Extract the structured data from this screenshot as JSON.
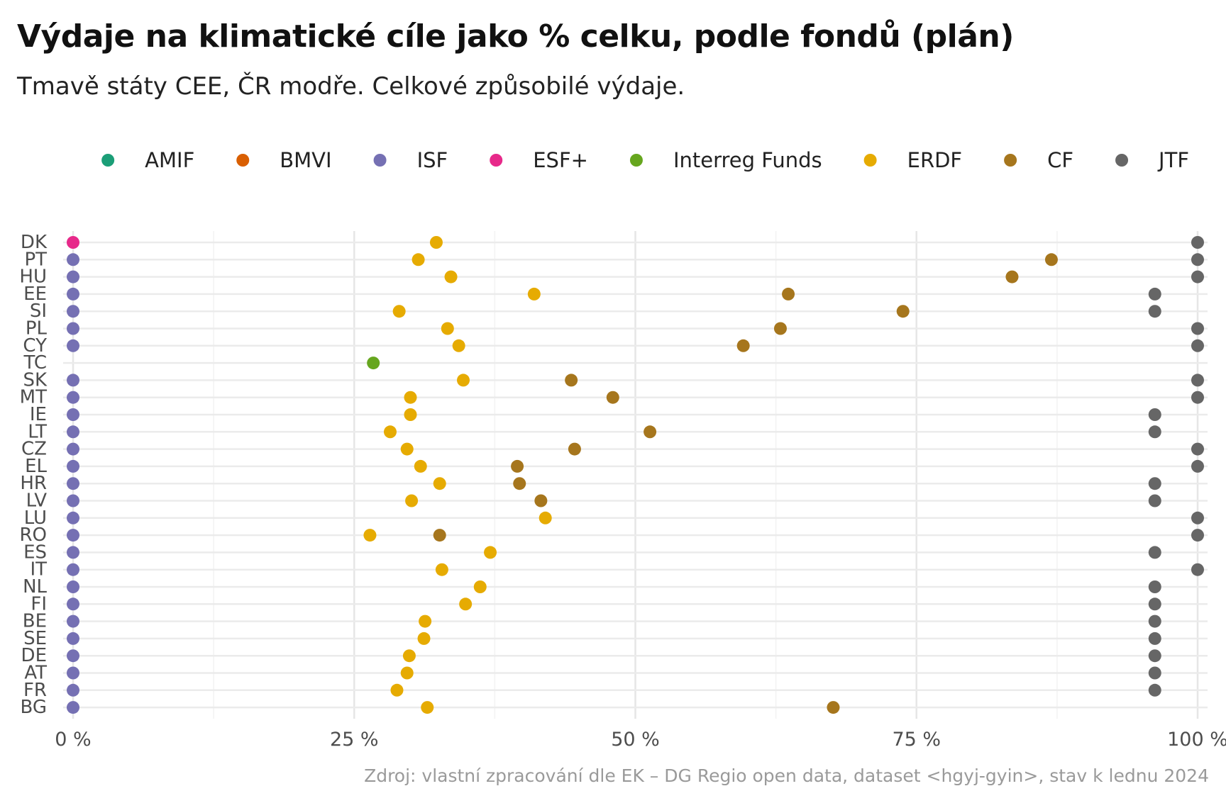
{
  "chart_data": {
    "type": "scatter",
    "title": "Výdaje na klimatické cíle jako % celku, podle fondů (plán)",
    "subtitle": "Tmavě státy CEE, ČR modře. Celkové způsobilé výdaje.",
    "caption": "Zdroj: vlastní zpracování dle EK – DG Regio open data, dataset <hgyj-gyin>, stav k lednu 2024",
    "xlabel": "",
    "ylabel": "",
    "xlim": [
      0,
      100
    ],
    "x_ticks": [
      0,
      25,
      50,
      75,
      100
    ],
    "x_tick_labels": [
      "0 %",
      "25 %",
      "50 %",
      "75 %",
      "100 %"
    ],
    "grid": true,
    "legend_position": "top",
    "categories": [
      "DK",
      "PT",
      "HU",
      "EE",
      "SI",
      "PL",
      "CY",
      "TC",
      "SK",
      "MT",
      "IE",
      "LT",
      "CZ",
      "EL",
      "HR",
      "LV",
      "LU",
      "RO",
      "ES",
      "IT",
      "NL",
      "FI",
      "BE",
      "SE",
      "DE",
      "AT",
      "FR",
      "BG"
    ],
    "series": [
      {
        "name": "AMIF",
        "color": "#1b9e77",
        "values": [
          null,
          null,
          null,
          null,
          null,
          null,
          null,
          null,
          null,
          null,
          null,
          null,
          null,
          null,
          null,
          null,
          null,
          null,
          null,
          null,
          null,
          null,
          null,
          null,
          null,
          null,
          null,
          null
        ]
      },
      {
        "name": "BMVI",
        "color": "#d95f02",
        "values": [
          null,
          null,
          null,
          null,
          null,
          null,
          null,
          null,
          null,
          null,
          null,
          null,
          null,
          null,
          null,
          null,
          null,
          null,
          null,
          null,
          null,
          null,
          null,
          null,
          null,
          null,
          null,
          null
        ]
      },
      {
        "name": "ISF",
        "color": "#7570b3",
        "values": [
          null,
          0,
          0,
          0,
          0,
          0,
          0,
          null,
          0,
          0,
          0,
          0,
          0,
          0,
          0,
          0,
          0,
          0,
          0,
          0,
          0,
          0,
          0,
          0,
          0,
          0,
          0,
          0
        ]
      },
      {
        "name": "ESF+",
        "color": "#e7298a",
        "values": [
          0,
          null,
          null,
          null,
          null,
          null,
          null,
          null,
          null,
          null,
          null,
          null,
          null,
          null,
          null,
          null,
          null,
          null,
          null,
          null,
          null,
          null,
          null,
          null,
          null,
          null,
          null,
          null
        ]
      },
      {
        "name": "Interreg Funds",
        "color": "#66a61e",
        "values": [
          null,
          null,
          null,
          null,
          null,
          null,
          null,
          26.7,
          null,
          null,
          null,
          null,
          null,
          null,
          null,
          null,
          null,
          null,
          null,
          null,
          null,
          null,
          null,
          null,
          null,
          null,
          null,
          null
        ]
      },
      {
        "name": "ERDF",
        "color": "#e6ab02",
        "values": [
          32.3,
          30.7,
          33.6,
          41.0,
          29.0,
          33.3,
          34.3,
          null,
          34.7,
          30.0,
          30.0,
          28.2,
          29.7,
          30.9,
          32.6,
          30.1,
          42.0,
          26.4,
          37.1,
          32.8,
          36.2,
          34.9,
          31.3,
          31.2,
          29.9,
          29.7,
          28.8,
          31.5
        ]
      },
      {
        "name": "CF",
        "color": "#a6761d",
        "values": [
          null,
          87.0,
          83.5,
          63.6,
          73.8,
          62.9,
          59.6,
          null,
          44.3,
          48.0,
          null,
          51.3,
          44.6,
          39.5,
          39.7,
          41.6,
          null,
          32.6,
          null,
          null,
          null,
          null,
          null,
          null,
          null,
          null,
          null,
          67.6
        ]
      },
      {
        "name": "JTF",
        "color": "#666666",
        "values": [
          100,
          100,
          100,
          96.2,
          96.2,
          100,
          100,
          null,
          100,
          100,
          96.2,
          96.2,
          100,
          100,
          96.2,
          96.2,
          100,
          100,
          96.2,
          100,
          96.2,
          96.2,
          96.2,
          96.2,
          96.2,
          96.2,
          96.2,
          null
        ]
      }
    ]
  }
}
